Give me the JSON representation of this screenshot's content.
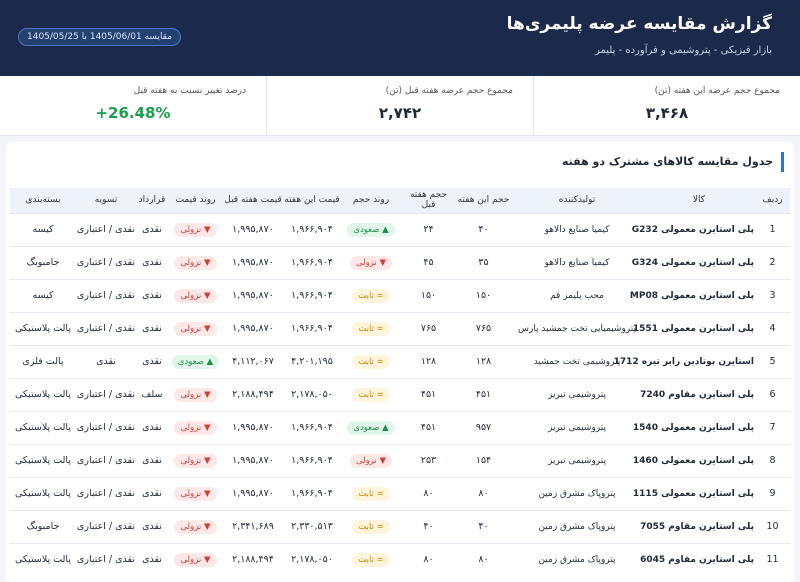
{
  "header": {
    "title": "گزارش مقایسه عرضه پلیمری‌ها",
    "subtitle": "بازار فیزیکی - پتروشیمی و فرآورده - پلیمر",
    "badge": "مقایسه 1405/06/01 با 1405/05/25"
  },
  "stats": [
    {
      "label": "مجموع حجم عرضه این هفته (تن)",
      "value": "۳,۴۶۸"
    },
    {
      "label": "مجموع حجم عرضه هفته قبل (تن)",
      "value": "۲,۷۴۲"
    },
    {
      "label": "درصد تغییر نسبت به هفته قبل",
      "value": "+26.48%"
    }
  ],
  "table": {
    "title": "جدول مقایسه کالاهای مشترک دو هفته",
    "columns": [
      "ردیف",
      "کالا",
      "تولیدکننده",
      "حجم این هفته",
      "حجم هفته قبل",
      "روند حجم",
      "قیمت این هفته",
      "قیمت هفته قبل",
      "روند قیمت",
      "قرارداد",
      "تسویه",
      "بسته‌بندی"
    ],
    "rows": [
      [
        "1",
        "پلی استایرن معمولی G232",
        "کیمیا صنایع دالاهو",
        "۴۰",
        "۲۴",
        {
          "text": "▲ صعودی",
          "color": "#1a8f4c",
          "background": "#e2f6ea"
        },
        "۱,۹۶۶,۹۰۴",
        "۱,۹۹۵,۸۷۰",
        {
          "text": "▼ نزولی",
          "color": "#d63a3a",
          "background": "#fde8e8"
        },
        "نقدی",
        "نقدی / اعتباری",
        "کیسه"
      ],
      [
        "2",
        "پلی استایرن معمولی G324",
        "کیمیا صنایع دالاهو",
        "۳۵",
        "۴۵",
        {
          "text": "▼ نزولی",
          "color": "#d63a3a",
          "background": "#fde8e8"
        },
        "۱,۹۶۶,۹۰۴",
        "۱,۹۹۵,۸۷۰",
        {
          "text": "▼ نزولی",
          "color": "#d63a3a",
          "background": "#fde8e8"
        },
        "نقدی",
        "نقدی / اعتباری",
        "جامبوبگ"
      ],
      [
        "3",
        "پلی استایرن معمولی MP08",
        "محب پلیمر قم",
        "۱۵۰",
        "۱۵۰",
        {
          "text": "= ثابت",
          "color": "#c48a00",
          "background": "#fff4dc"
        },
        "۱,۹۶۶,۹۰۴",
        "۱,۹۹۵,۸۷۰",
        {
          "text": "▼ نزولی",
          "color": "#d63a3a",
          "background": "#fde8e8"
        },
        "نقدی",
        "نقدی / اعتباری",
        "کیسه"
      ],
      [
        "4",
        "پلی استایرن معمولی 1551",
        "پتروشیمیایی تخت جمشید پارس",
        "۷۶۵",
        "۷۶۵",
        {
          "text": "= ثابت",
          "color": "#c48a00",
          "background": "#fff4dc"
        },
        "۱,۹۶۶,۹۰۴",
        "۱,۹۹۵,۸۷۰",
        {
          "text": "▼ نزولی",
          "color": "#d63a3a",
          "background": "#fde8e8"
        },
        "نقدی",
        "نقدی / اعتباری",
        "پالت پلاستیکی"
      ],
      [
        "5",
        "استایرن بوتادین رابر تیره 1712",
        "پتروشیمی تخت جمشید",
        "۱۲۸",
        "۱۲۸",
        {
          "text": "= ثابت",
          "color": "#c48a00",
          "background": "#fff4dc"
        },
        "۴,۲۰۱,۱۹۵",
        "۴,۱۱۲,۰۶۷",
        {
          "text": "▲ صعودی",
          "color": "#1a8f4c",
          "background": "#e2f6ea"
        },
        "نقدی",
        "نقدی",
        "پالت فلزی"
      ],
      [
        "6",
        "پلی استایرن مقاوم 7240",
        "پتروشیمی تبریز",
        "۴۵۱",
        "۴۵۱",
        {
          "text": "= ثابت",
          "color": "#c48a00",
          "background": "#fff4dc"
        },
        "۲,۱۷۸,۰۵۰",
        "۲,۱۸۸,۴۹۴",
        {
          "text": "▼ نزولی",
          "color": "#d63a3a",
          "background": "#fde8e8"
        },
        "سلف",
        "نقدی / اعتباری",
        "پالت پلاستیکی"
      ],
      [
        "7",
        "پلی استایرن معمولی 1540",
        "پتروشیمی تبریز",
        "۹۵۷",
        "۴۵۱",
        {
          "text": "▲ صعودی",
          "color": "#1a8f4c",
          "background": "#e2f6ea"
        },
        "۱,۹۶۶,۹۰۴",
        "۱,۹۹۵,۸۷۰",
        {
          "text": "▼ نزولی",
          "color": "#d63a3a",
          "background": "#fde8e8"
        },
        "نقدی",
        "نقدی / اعتباری",
        "پالت پلاستیکی"
      ],
      [
        "8",
        "پلی استایرن معمولی 1460",
        "پتروشیمی تبریز",
        "۱۵۴",
        "۲۵۳",
        {
          "text": "▼ نزولی",
          "color": "#d63a3a",
          "background": "#fde8e8"
        },
        "۱,۹۶۶,۹۰۴",
        "۱,۹۹۵,۸۷۰",
        {
          "text": "▼ نزولی",
          "color": "#d63a3a",
          "background": "#fde8e8"
        },
        "نقدی",
        "نقدی / اعتباری",
        "پالت پلاستیکی"
      ],
      [
        "9",
        "پلی استایرن معمولی 1115",
        "پتروپاک مشرق زمین",
        "۸۰",
        "۸۰",
        {
          "text": "= ثابت",
          "color": "#c48a00",
          "background": "#fff4dc"
        },
        "۱,۹۶۶,۹۰۴",
        "۱,۹۹۵,۸۷۰",
        {
          "text": "▼ نزولی",
          "color": "#d63a3a",
          "background": "#fde8e8"
        },
        "نقدی",
        "نقدی / اعتباری",
        "پالت پلاستیکی"
      ],
      [
        "10",
        "پلی استایرن مقاوم 7055",
        "پتروپاک مشرق زمین",
        "۴۰",
        "۴۰",
        {
          "text": "= ثابت",
          "color": "#c48a00",
          "background": "#fff4dc"
        },
        "۲,۳۳۰,۵۱۳",
        "۲,۳۴۱,۶۸۹",
        {
          "text": "▼ نزولی",
          "color": "#d63a3a",
          "background": "#fde8e8"
        },
        "نقدی",
        "نقدی / اعتباری",
        "جامبوبگ"
      ],
      [
        "11",
        "پلی استایرن مقاوم 6045",
        "پتروپاک مشرق زمین",
        "۸۰",
        "۸۰",
        {
          "text": "= ثابت",
          "color": "#c48a00",
          "background": "#fff4dc"
        },
        "۲,۱۷۸,۰۵۰",
        "۲,۱۸۸,۴۹۴",
        {
          "text": "▼ نزولی",
          "color": "#d63a3a",
          "background": "#fde8e8"
        },
        "نقدی",
        "نقدی / اعتباری",
        "پالت پلاستیکی"
      ]
    ]
  }
}
